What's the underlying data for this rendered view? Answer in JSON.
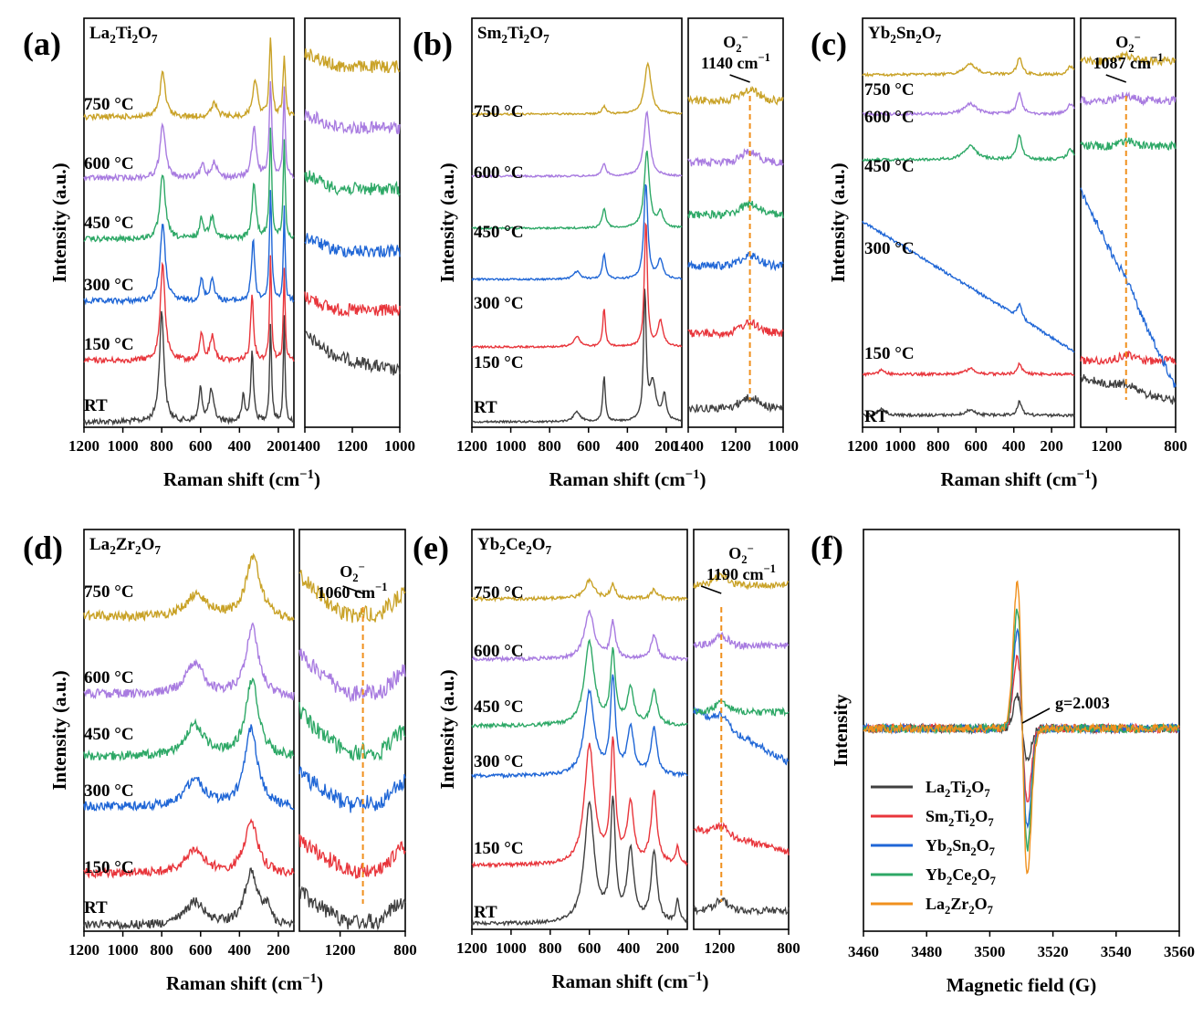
{
  "figure": {
    "type": "multi-panel Raman and EPR spectra",
    "colors": {
      "RT": "#3f3f3f",
      "150": "#e8353b",
      "300": "#1f66d6",
      "450": "#2da866",
      "600": "#a87be0",
      "750": "#c9a227",
      "orange_line": "#f0901d"
    }
  },
  "chart_data": [
    {
      "panel": "(a)",
      "compound": [
        "La",
        "2",
        "Ti",
        "2",
        "O",
        "7"
      ],
      "type": "line",
      "xlabel_main": "Raman shift (cm",
      "xlabel_sup": "−1",
      "xlabel_end": ")",
      "ylabel": "Intensity (a.u.)",
      "left": {
        "xlim": [
          1200,
          120
        ],
        "ticks": [
          "1200",
          "1000",
          "800",
          "600",
          "400",
          "200"
        ]
      },
      "right": {
        "xlim": [
          1400,
          1000
        ],
        "ticks": [
          "1400",
          "1200",
          "1000"
        ]
      },
      "series": [
        {
          "name": "RT",
          "label": "RT",
          "color": "#3f3f3f",
          "peaks": [
            [
              800,
              1.0,
              14
            ],
            [
              600,
              0.3,
              10
            ],
            [
              545,
              0.28,
              14
            ],
            [
              380,
              0.25,
              8
            ],
            [
              335,
              0.65,
              8
            ],
            [
              240,
              0.9,
              6
            ],
            [
              170,
              0.95,
              5
            ]
          ]
        },
        {
          "name": "150",
          "label": "150 °C",
          "color": "#e8353b",
          "peaks": [
            [
              795,
              0.9,
              14
            ],
            [
              595,
              0.25,
              10
            ],
            [
              540,
              0.22,
              14
            ],
            [
              335,
              0.6,
              9
            ],
            [
              240,
              0.95,
              6
            ],
            [
              170,
              0.85,
              5
            ]
          ]
        },
        {
          "name": "300",
          "label": "300 °C",
          "color": "#1f66d6",
          "peaks": [
            [
              795,
              0.7,
              16
            ],
            [
              595,
              0.2,
              10
            ],
            [
              540,
              0.2,
              14
            ],
            [
              330,
              0.55,
              10
            ],
            [
              240,
              1.0,
              7
            ],
            [
              170,
              0.85,
              5
            ]
          ]
        },
        {
          "name": "450",
          "label": "450 °C",
          "color": "#2da866",
          "peaks": [
            [
              795,
              0.6,
              16
            ],
            [
              595,
              0.18,
              12
            ],
            [
              540,
              0.2,
              16
            ],
            [
              325,
              0.5,
              12
            ],
            [
              240,
              1.0,
              7
            ],
            [
              170,
              0.9,
              6
            ]
          ]
        },
        {
          "name": "600",
          "label": "600 °C",
          "color": "#a87be0",
          "peaks": [
            [
              795,
              0.5,
              16
            ],
            [
              590,
              0.12,
              12
            ],
            [
              530,
              0.15,
              16
            ],
            [
              325,
              0.45,
              14
            ],
            [
              240,
              0.85,
              8
            ],
            [
              170,
              0.8,
              6
            ]
          ]
        },
        {
          "name": "750",
          "label": "750 °C",
          "color": "#c9a227",
          "peaks": [
            [
              795,
              0.4,
              16
            ],
            [
              530,
              0.12,
              18
            ],
            [
              320,
              0.35,
              14
            ],
            [
              240,
              0.7,
              8
            ],
            [
              170,
              0.55,
              7
            ]
          ]
        }
      ],
      "annotation": null
    },
    {
      "panel": "(b)",
      "compound": [
        "Sm",
        "2",
        "Ti",
        "2",
        "O",
        "7"
      ],
      "type": "line",
      "xlabel_main": "Raman shift (cm",
      "xlabel_sup": "−1",
      "xlabel_end": ")",
      "ylabel": "Intensity (a.u.)",
      "left": {
        "xlim": [
          1200,
          120
        ],
        "ticks": [
          "1200",
          "1000",
          "800",
          "600",
          "400",
          "200"
        ]
      },
      "right": {
        "xlim": [
          1400,
          1000
        ],
        "ticks": [
          "1400",
          "1200",
          "1000"
        ]
      },
      "series": [
        {
          "name": "RT",
          "label": "RT",
          "color": "#3f3f3f",
          "peaks": [
            [
              660,
              0.08,
              20
            ],
            [
              520,
              0.35,
              8
            ],
            [
              310,
              1.0,
              8
            ],
            [
              270,
              0.3,
              20
            ],
            [
              210,
              0.2,
              12
            ]
          ]
        },
        {
          "name": "150",
          "label": "150 °C",
          "color": "#e8353b",
          "peaks": [
            [
              660,
              0.08,
              20
            ],
            [
              520,
              0.3,
              8
            ],
            [
              305,
              1.0,
              9
            ],
            [
              230,
              0.2,
              16
            ]
          ]
        },
        {
          "name": "300",
          "label": "300 °C",
          "color": "#1f66d6",
          "peaks": [
            [
              660,
              0.06,
              20
            ],
            [
              520,
              0.2,
              10
            ],
            [
              305,
              0.75,
              12
            ],
            [
              230,
              0.15,
              16
            ]
          ]
        },
        {
          "name": "450",
          "label": "450 °C",
          "color": "#2da866",
          "peaks": [
            [
              520,
              0.15,
              12
            ],
            [
              300,
              0.6,
              16
            ],
            [
              230,
              0.12,
              16
            ]
          ]
        },
        {
          "name": "600",
          "label": "600 °C",
          "color": "#a87be0",
          "peaks": [
            [
              520,
              0.1,
              12
            ],
            [
              300,
              0.5,
              18
            ]
          ]
        },
        {
          "name": "750",
          "label": "750 °C",
          "color": "#c9a227",
          "peaks": [
            [
              520,
              0.06,
              12
            ],
            [
              295,
              0.4,
              20
            ]
          ]
        }
      ],
      "annotation": {
        "label": "O",
        "sub": "2",
        "sup": "−",
        "value": "1140 cm",
        "value_sup": "−1",
        "x": 1140
      }
    },
    {
      "panel": "(c)",
      "compound": [
        "Yb",
        "2",
        "Sn",
        "2",
        "O",
        "7"
      ],
      "type": "line",
      "xlabel_main": "Raman shift (cm",
      "xlabel_sup": "−1",
      "xlabel_end": ")",
      "ylabel": "Intensity (a.u.)",
      "left": {
        "xlim": [
          1200,
          80
        ],
        "ticks": [
          "1200",
          "1000",
          "800",
          "600",
          "400",
          "200"
        ]
      },
      "right": {
        "xlim": [
          1350,
          800
        ],
        "ticks": [
          "1200",
          "800"
        ]
      },
      "series": [
        {
          "name": "RT",
          "label": "RT",
          "color": "#3f3f3f",
          "peaks": [
            [
              1100,
              0.1,
              20
            ],
            [
              630,
              0.08,
              30
            ],
            [
              370,
              0.2,
              14
            ]
          ]
        },
        {
          "name": "150",
          "label": "150 °C",
          "color": "#e8353b",
          "peaks": [
            [
              1100,
              0.06,
              20
            ],
            [
              630,
              0.08,
              30
            ],
            [
              370,
              0.16,
              14
            ]
          ]
        },
        {
          "name": "300",
          "label": "300 °C",
          "color": "#1f66d6",
          "peaks": [
            [
              370,
              0.2,
              14
            ]
          ]
        },
        {
          "name": "450",
          "label": "450 °C",
          "color": "#2da866",
          "peaks": [
            [
              630,
              0.2,
              40
            ],
            [
              370,
              0.35,
              16
            ],
            [
              100,
              0.15,
              20
            ]
          ]
        },
        {
          "name": "600",
          "label": "600 °C",
          "color": "#a87be0",
          "peaks": [
            [
              630,
              0.15,
              40
            ],
            [
              370,
              0.3,
              16
            ],
            [
              100,
              0.15,
              20
            ]
          ]
        },
        {
          "name": "750",
          "label": "750 °C",
          "color": "#c9a227",
          "peaks": [
            [
              630,
              0.15,
              40
            ],
            [
              370,
              0.25,
              16
            ],
            [
              100,
              0.12,
              20
            ]
          ]
        }
      ],
      "annotation": {
        "label": "O",
        "sub": "2",
        "sup": "−",
        "value": "1087 cm",
        "value_sup": "−1",
        "x": 1087
      }
    },
    {
      "panel": "(d)",
      "compound": [
        "La",
        "2",
        "Zr",
        "2",
        "O",
        "7"
      ],
      "type": "line",
      "xlabel_main": "Raman shift (cm",
      "xlabel_sup": "−1",
      "xlabel_end": ")",
      "ylabel": "Intensity (a.u.)",
      "left": {
        "xlim": [
          1200,
          120
        ],
        "ticks": [
          "1200",
          "1000",
          "800",
          "600",
          "400",
          "200"
        ]
      },
      "right": {
        "xlim": [
          1450,
          800
        ],
        "ticks": [
          "1200",
          "800"
        ]
      },
      "series": [
        {
          "name": "RT",
          "label": "RT",
          "color": "#3f3f3f",
          "peaks": [
            [
              630,
              0.3,
              60
            ],
            [
              340,
              0.7,
              40
            ],
            [
              260,
              0.2,
              20
            ]
          ]
        },
        {
          "name": "150",
          "label": "150 °C",
          "color": "#e8353b",
          "peaks": [
            [
              630,
              0.3,
              60
            ],
            [
              340,
              0.7,
              40
            ]
          ]
        },
        {
          "name": "300",
          "label": "300 °C",
          "color": "#1f66d6",
          "peaks": [
            [
              630,
              0.35,
              60
            ],
            [
              340,
              1.0,
              40
            ]
          ]
        },
        {
          "name": "450",
          "label": "450 °C",
          "color": "#2da866",
          "peaks": [
            [
              630,
              0.4,
              60
            ],
            [
              335,
              1.0,
              40
            ]
          ]
        },
        {
          "name": "600",
          "label": "600 °C",
          "color": "#a87be0",
          "peaks": [
            [
              630,
              0.4,
              60
            ],
            [
              335,
              0.9,
              40
            ]
          ]
        },
        {
          "name": "750",
          "label": "750 °C",
          "color": "#c9a227",
          "peaks": [
            [
              620,
              0.3,
              70
            ],
            [
              330,
              0.8,
              45
            ]
          ]
        }
      ],
      "annotation": {
        "label": "O",
        "sub": "2",
        "sup": "−",
        "value": "1060 cm",
        "value_sup": "−1",
        "x": 1060
      }
    },
    {
      "panel": "(e)",
      "compound": [
        "Yb",
        "2",
        "Ce",
        "2",
        "O",
        "7"
      ],
      "type": "line",
      "xlabel_main": "Raman shift (cm",
      "xlabel_sup": "−1",
      "xlabel_end": ")",
      "ylabel": "Intensity (a.u.)",
      "left": {
        "xlim": [
          1200,
          100
        ],
        "ticks": [
          "1200",
          "1000",
          "800",
          "600",
          "400",
          "200"
        ]
      },
      "right": {
        "xlim": [
          1350,
          800
        ],
        "ticks": [
          "1200",
          "800"
        ]
      },
      "series": [
        {
          "name": "RT",
          "label": "RT",
          "color": "#3f3f3f",
          "peaks": [
            [
              600,
              1.0,
              30
            ],
            [
              480,
              1.0,
              15
            ],
            [
              390,
              0.6,
              20
            ],
            [
              270,
              0.6,
              18
            ],
            [
              150,
              0.2,
              10
            ]
          ]
        },
        {
          "name": "150",
          "label": "150 °C",
          "color": "#e8353b",
          "peaks": [
            [
              600,
              1.0,
              30
            ],
            [
              480,
              1.0,
              15
            ],
            [
              390,
              0.5,
              20
            ],
            [
              270,
              0.6,
              18
            ],
            [
              150,
              0.15,
              10
            ]
          ]
        },
        {
          "name": "300",
          "label": "300 °C",
          "color": "#1f66d6",
          "peaks": [
            [
              600,
              0.7,
              30
            ],
            [
              480,
              0.8,
              15
            ],
            [
              390,
              0.4,
              20
            ],
            [
              270,
              0.4,
              18
            ]
          ]
        },
        {
          "name": "450",
          "label": "450 °C",
          "color": "#2da866",
          "peaks": [
            [
              600,
              0.7,
              30
            ],
            [
              480,
              0.6,
              15
            ],
            [
              390,
              0.3,
              20
            ],
            [
              270,
              0.3,
              18
            ]
          ]
        },
        {
          "name": "600",
          "label": "600 °C",
          "color": "#a87be0",
          "peaks": [
            [
              600,
              0.4,
              30
            ],
            [
              480,
              0.3,
              15
            ],
            [
              270,
              0.2,
              18
            ]
          ]
        },
        {
          "name": "750",
          "label": "750 °C",
          "color": "#c9a227",
          "peaks": [
            [
              600,
              0.15,
              30
            ],
            [
              480,
              0.12,
              15
            ],
            [
              270,
              0.08,
              18
            ]
          ]
        }
      ],
      "annotation": {
        "label": "O",
        "sub": "2",
        "sup": "−",
        "value": "1190 cm",
        "value_sup": "−1",
        "x": 1190
      }
    },
    {
      "panel": "(f)",
      "type": "line",
      "subtype": "EPR",
      "xlabel": "Magnetic field (G)",
      "ylabel": "Intensity (a.u.)",
      "ylabel_display": "Intensity",
      "xlim": [
        3460,
        3560
      ],
      "ticks": [
        "3460",
        "3480",
        "3500",
        "3520",
        "3540",
        "3560"
      ],
      "center": 3510.3,
      "annotation": "g=2.003",
      "series": [
        {
          "name": "La2Ti2O7",
          "label": [
            "La",
            "2",
            "Ti",
            "2",
            "O",
            "7"
          ],
          "color": "#3f3f3f",
          "amplitude": 0.22
        },
        {
          "name": "Sm2Ti2O7",
          "label": [
            "Sm",
            "2",
            "Ti",
            "2",
            "O",
            "7"
          ],
          "color": "#e8353b",
          "amplitude": 0.5
        },
        {
          "name": "Yb2Sn2O7",
          "label": [
            "Yb",
            "2",
            "Sn",
            "2",
            "O",
            "7"
          ],
          "color": "#1f66d6",
          "amplitude": 0.68
        },
        {
          "name": "Yb2Ce2O7",
          "label": [
            "Yb",
            "2",
            "Ce",
            "2",
            "O",
            "7"
          ],
          "color": "#2da866",
          "amplitude": 0.82
        },
        {
          "name": "La2Zr2O7",
          "label": [
            "La",
            "2",
            "Zr",
            "2",
            "O",
            "7"
          ],
          "color": "#f0901d",
          "amplitude": 1.0
        }
      ]
    }
  ]
}
